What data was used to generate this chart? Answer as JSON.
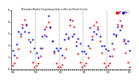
{
  "title": "Milwaukee Weather Evapotranspiration vs Rain per Month (Inches)",
  "legend_et": "ET",
  "legend_rain": "Rain",
  "color_et": "#ff0000",
  "color_rain": "#0000ff",
  "background": "#ffffff",
  "et": [
    0.3,
    0.5,
    1.0,
    1.7,
    2.8,
    3.8,
    4.2,
    3.7,
    2.5,
    1.5,
    0.6,
    0.2,
    0.3,
    0.5,
    1.1,
    1.8,
    2.9,
    3.6,
    4.0,
    3.5,
    2.4,
    1.4,
    0.5,
    0.2,
    0.2,
    0.4,
    1.0,
    1.7,
    2.7,
    3.7,
    4.1,
    3.6,
    2.3,
    1.3,
    0.6,
    0.2,
    0.3,
    0.5,
    1.0,
    1.8,
    2.8,
    3.7,
    4.0,
    3.6,
    2.4,
    1.4,
    0.5,
    0.2,
    0.3,
    0.5,
    1.1,
    1.7,
    2.8,
    3.8,
    4.1,
    3.6,
    2.4,
    1.4,
    0.6,
    0.2
  ],
  "rain": [
    1.6,
    1.2,
    2.1,
    3.2,
    3.0,
    3.5,
    3.2,
    3.8,
    3.1,
    2.3,
    2.5,
    1.8,
    1.4,
    1.0,
    1.8,
    2.8,
    3.4,
    2.8,
    4.5,
    3.6,
    2.4,
    1.5,
    1.8,
    1.6,
    1.8,
    1.2,
    2.5,
    3.0,
    2.6,
    4.2,
    2.8,
    3.0,
    2.0,
    2.6,
    2.2,
    1.5,
    1.5,
    1.3,
    2.0,
    3.5,
    2.5,
    3.2,
    3.0,
    3.4,
    2.8,
    2.0,
    2.0,
    1.7,
    1.6,
    1.1,
    2.2,
    3.0,
    2.9,
    3.6,
    3.3,
    3.7,
    2.5,
    2.2,
    2.4,
    1.6
  ],
  "ylim": [
    0,
    5
  ],
  "yticks": [
    0,
    1,
    2,
    3,
    4,
    5
  ],
  "year_dividers": [
    12,
    24,
    36,
    48
  ],
  "xtick_positions": [
    0,
    12,
    24,
    36,
    48,
    59
  ],
  "xtick_labels": [
    "'98",
    "'99",
    "'00",
    "'01",
    "'02",
    "'03"
  ]
}
